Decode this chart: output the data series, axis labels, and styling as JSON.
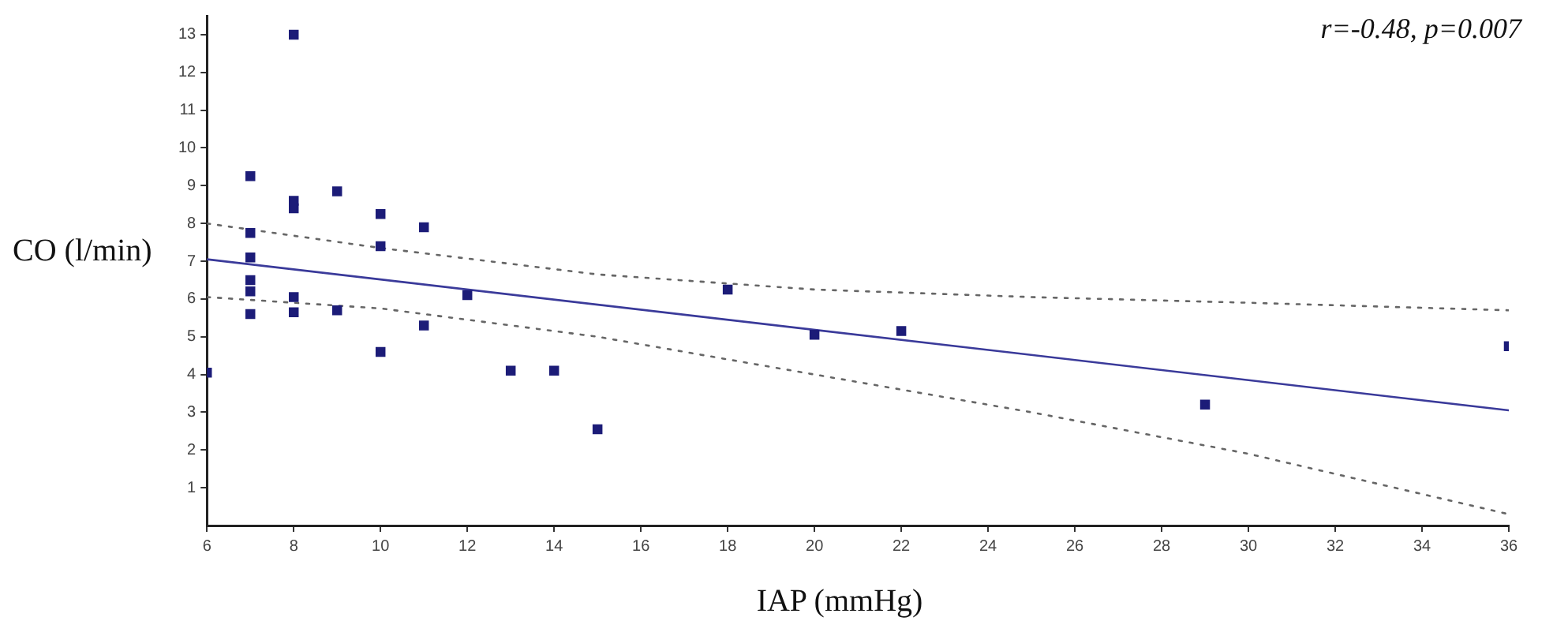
{
  "chart_data": {
    "type": "scatter",
    "xlabel": "IAP (mmHg)",
    "ylabel": "CO (l/min)",
    "annotations": [
      "r=-0.48, p=0.007"
    ],
    "xlim": [
      6,
      36
    ],
    "xticks": [
      6,
      8,
      10,
      12,
      14,
      16,
      18,
      20,
      22,
      24,
      26,
      28,
      30,
      32,
      34,
      36
    ],
    "ylim": [
      0,
      13.5
    ],
    "yticks": [
      1,
      2,
      3,
      4,
      5,
      6,
      7,
      8,
      9,
      10,
      11,
      12,
      13
    ],
    "grid": false,
    "legend": false,
    "series": [
      {
        "type": "scatter",
        "color": "#1c1c78",
        "marker": "square",
        "x": [
          6,
          7,
          7,
          7,
          7,
          7,
          7,
          8,
          8,
          8,
          8,
          8,
          9,
          9,
          10,
          10,
          10,
          11,
          11,
          12,
          13,
          14,
          15,
          18,
          20,
          22,
          29,
          36
        ],
        "values": [
          4.05,
          9.25,
          7.75,
          7.1,
          6.5,
          6.2,
          5.6,
          13,
          8.6,
          8.4,
          6.05,
          5.65,
          8.85,
          5.7,
          8.25,
          7.4,
          4.6,
          7.9,
          5.3,
          6.1,
          4.1,
          4.1,
          2.55,
          6.25,
          5.05,
          5.15,
          3.2,
          4.75
        ]
      },
      {
        "type": "line",
        "color": "#3a3a9a",
        "marker": "none",
        "line_style": "solid",
        "x": [
          6,
          36
        ],
        "values": [
          7.05,
          3.05
        ]
      },
      {
        "type": "line",
        "color": "#666666",
        "marker": "none",
        "line_style": "dotted",
        "x": [
          6,
          10,
          15,
          20,
          25,
          30,
          36
        ],
        "values": [
          8.0,
          7.35,
          6.65,
          6.25,
          6.05,
          5.9,
          5.7
        ]
      },
      {
        "type": "line",
        "color": "#666666",
        "marker": "none",
        "line_style": "dotted",
        "x": [
          6,
          10,
          15,
          20,
          25,
          30,
          36
        ],
        "values": [
          6.05,
          5.75,
          5.0,
          4.0,
          3.0,
          1.9,
          0.3
        ]
      }
    ]
  }
}
